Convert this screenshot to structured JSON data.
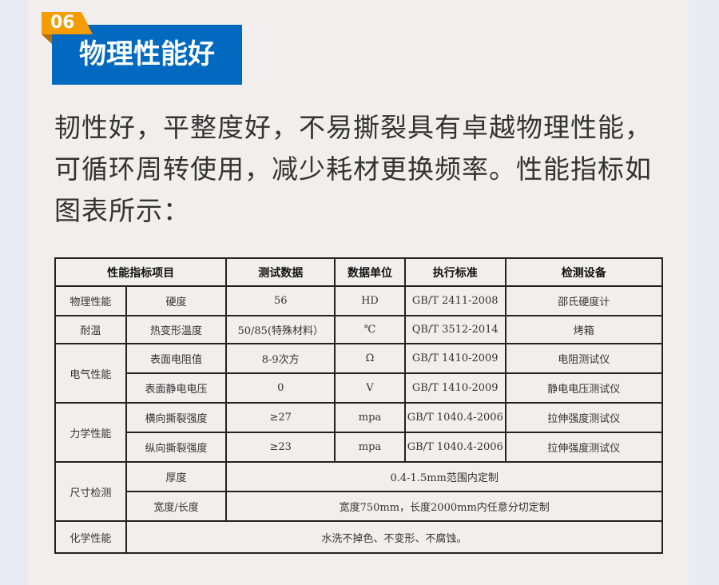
{
  "badge": {
    "number": "06",
    "title": "物理性能好"
  },
  "description": "韧性好，平整度好，不易撕裂具有卓越物理性能，可循环周转使用，减少耗材更换频率。性能指标如图表所示：",
  "colors": {
    "accent_blue": "#0169bf",
    "accent_orange": "#f59c00"
  },
  "table": {
    "headers": [
      "性能指标项目",
      "测试数据",
      "数据单位",
      "执行标准",
      "检测设备"
    ],
    "rows": [
      {
        "category": "物理性能",
        "item": "硬度",
        "data": "56",
        "unit": "HD",
        "standard": "GB/T 2411-2008",
        "equipment": "邵氏硬度计"
      },
      {
        "category": "耐温",
        "item": "热变形温度",
        "data": "50/85(特殊材料）",
        "unit": "℃",
        "standard": "QB/T 3512-2014",
        "equipment": "烤箱"
      },
      {
        "category": "电气性能",
        "item": "表面电阻值",
        "data": "8-9次方",
        "unit": "Ω",
        "standard": "GB/T 1410-2009",
        "equipment": "电阻测试仪"
      },
      {
        "item": "表面静电电压",
        "data": "0",
        "unit": "V",
        "standard": "GB/T 1410-2009",
        "equipment": "静电电压测试仪"
      },
      {
        "category": "力学性能",
        "item": "横向撕裂强度",
        "data": "≥27",
        "unit": "mpa",
        "standard": "GB/T 1040.4-2006",
        "equipment": "拉伸强度测试仪"
      },
      {
        "item": "纵向撕裂强度",
        "data": "≥23",
        "unit": "mpa",
        "standard": "GB/T 1040.4-2006",
        "equipment": "拉伸强度测试仪"
      },
      {
        "category": "尺寸检测",
        "item": "厚度",
        "merged": "0.4-1.5mm范围内定制"
      },
      {
        "item": "宽度/长度",
        "merged": "宽度750mm，长度2000mm内任意分切定制"
      },
      {
        "category": "化学性能",
        "merged": "水洗不掉色、不变形、不腐蚀。"
      }
    ]
  }
}
